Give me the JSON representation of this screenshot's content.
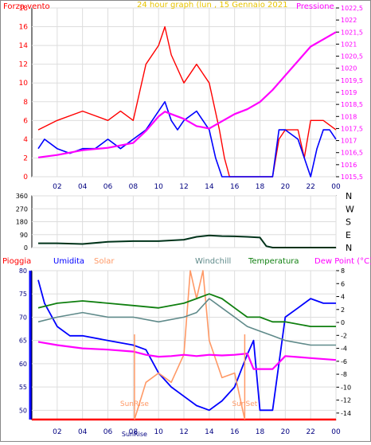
{
  "colors": {
    "wind": "#ff0000",
    "wind_avg": "#0000ff",
    "pressure": "#ff00ff",
    "direction": "#00331a",
    "rain": "#ff0000",
    "humidity": "#0000ff",
    "solar": "#ff9966",
    "windchill": "#5f8a8a",
    "temperature": "#0f7f0f",
    "dewpoint": "#ff00ff",
    "axis": "#000000",
    "grid": "#dddddd"
  },
  "chart_data": [
    {
      "type": "line",
      "title": "24 hour graph (lun , 15 Gennaio 2021",
      "ylabel": "Forza vento",
      "y2label": "Pressione",
      "xticks": [
        "02",
        "04",
        "06",
        "08",
        "10",
        "12",
        "14",
        "16",
        "18",
        "20",
        "22",
        "00"
      ],
      "ylim": [
        0,
        18
      ],
      "yticks": [
        "0",
        "2",
        "4",
        "6",
        "8",
        "10",
        "12",
        "14",
        "16",
        "18"
      ],
      "y2lim": [
        1015.5,
        1022.5
      ],
      "y2ticks": [
        "1015,5",
        "1016",
        "1016,5",
        "1017",
        "1017,5",
        "1018",
        "1018,5",
        "1019",
        "1019,5",
        "1020",
        "1020,5",
        "1021",
        "1021,5",
        "1022",
        "1022,5"
      ],
      "grid": true,
      "series": [
        {
          "name": "Forza vento",
          "axis": "left",
          "x": [
            0.5,
            2,
            4,
            6,
            7,
            8,
            9,
            10,
            10.5,
            11,
            12,
            13,
            14,
            14.8,
            15.2,
            15.6,
            17,
            19,
            19.5,
            20,
            21,
            21.5,
            22,
            23,
            24
          ],
          "values": [
            5,
            6,
            7,
            6,
            7,
            6,
            12,
            14,
            16,
            13,
            10,
            12,
            10,
            5,
            2,
            0,
            0,
            0,
            4,
            5,
            5,
            2,
            6,
            6,
            5
          ]
        },
        {
          "name": "",
          "axis": "left",
          "x": [
            0.5,
            1,
            2,
            3,
            4,
            5,
            6,
            7,
            8,
            9,
            10,
            10.5,
            11,
            11.5,
            12,
            13,
            14,
            14.5,
            15,
            15.5,
            17,
            19,
            19.5,
            20,
            21,
            21.5,
            22,
            22.5,
            23,
            23.5,
            24
          ],
          "values": [
            3,
            4,
            3,
            2.5,
            3,
            3,
            4,
            3,
            4,
            5,
            7,
            8,
            6,
            5,
            6,
            7,
            5,
            2,
            0,
            0,
            0,
            0,
            5,
            5,
            4,
            2,
            0,
            3,
            5,
            5,
            4
          ]
        },
        {
          "name": "Pressione",
          "axis": "right",
          "x": [
            0.5,
            2,
            4,
            6,
            8,
            9,
            10,
            10.5,
            11,
            12,
            13,
            14,
            15,
            16,
            17,
            18,
            19,
            20,
            21,
            22,
            23,
            24
          ],
          "values": [
            1016.3,
            1016.4,
            1016.6,
            1016.7,
            1016.9,
            1017.4,
            1018.0,
            1018.2,
            1018.1,
            1017.9,
            1017.6,
            1017.5,
            1017.8,
            1018.1,
            1018.3,
            1018.6,
            1019.1,
            1019.7,
            1020.3,
            1020.9,
            1021.2,
            1021.5
          ]
        }
      ]
    },
    {
      "type": "line",
      "xticks": [
        "02",
        "04",
        "06",
        "08",
        "10",
        "12",
        "14",
        "16",
        "18",
        "20",
        "22",
        "00"
      ],
      "ylim": [
        0,
        360
      ],
      "yticks": [
        "0",
        "90",
        "180",
        "270",
        "360"
      ],
      "direction_labels": [
        "N",
        "W",
        "S",
        "E",
        "N"
      ],
      "grid": true,
      "series": [
        {
          "name": "",
          "x": [
            0.5,
            2,
            4,
            6,
            8,
            10,
            12,
            13,
            14,
            15,
            16,
            17,
            18,
            18.5,
            19,
            20,
            22,
            24
          ],
          "values": [
            30,
            30,
            25,
            40,
            45,
            45,
            55,
            75,
            85,
            80,
            78,
            75,
            70,
            10,
            0,
            0,
            0,
            0
          ]
        }
      ]
    },
    {
      "type": "line",
      "legend": [
        "Pioggia",
        "Umidita",
        "Solar",
        "Windchill",
        "Temperatura",
        "Dew Point (°C)"
      ],
      "y_right_label": "Dew Point (°C)",
      "xticks": [
        "02",
        "04",
        "06",
        "08",
        "10",
        "12",
        "14",
        "16",
        "18",
        "20",
        "22",
        "00"
      ],
      "ylim": [
        48,
        80
      ],
      "yticks": [
        "50",
        "55",
        "60",
        "65",
        "70",
        "75",
        "80"
      ],
      "y2lim": [
        -15,
        8
      ],
      "y2ticks": [
        "-14",
        "-12",
        "-10",
        "-8",
        "-6",
        "-4",
        "-2",
        "0",
        "2",
        "4",
        "6",
        "8"
      ],
      "annotations": [
        {
          "text": "SunRise",
          "x": 8.1
        },
        {
          "text": "SunSet",
          "x": 16.8
        }
      ],
      "grid": true,
      "series": [
        {
          "name": "Pioggia",
          "axis": "left",
          "x": [
            0,
            17.6,
            17.6,
            24
          ],
          "values": [
            48,
            48,
            48,
            48
          ]
        },
        {
          "name": "Umidita",
          "axis": "left",
          "x": [
            0.5,
            1,
            2,
            3,
            4,
            6,
            8,
            9,
            10,
            11,
            12,
            13,
            14,
            15,
            16,
            17,
            17.5,
            18,
            19,
            20,
            21,
            22,
            23,
            24
          ],
          "values": [
            78,
            73,
            68,
            66,
            66,
            65,
            64,
            63,
            58,
            55,
            53,
            51,
            50,
            52,
            55,
            62,
            65,
            50,
            50,
            70,
            72,
            74,
            73,
            73
          ]
        },
        {
          "name": "Solar",
          "axis": "left",
          "x": [
            8.1,
            9,
            10,
            11,
            12,
            12.5,
            13,
            13.5,
            14,
            15,
            16,
            16.8
          ],
          "values": [
            48,
            56,
            58,
            56,
            62,
            80,
            74,
            80,
            65,
            57,
            58,
            48
          ]
        },
        {
          "name": "Windchill",
          "axis": "left",
          "x": [
            0.5,
            2,
            4,
            6,
            8,
            10,
            12,
            13,
            14,
            15,
            16,
            17,
            18,
            19,
            20,
            22,
            24
          ],
          "values": [
            69,
            70,
            71,
            70,
            70,
            69,
            70,
            71,
            74,
            72,
            70,
            68,
            67,
            66,
            65,
            64,
            64
          ]
        },
        {
          "name": "Temperatura",
          "axis": "left",
          "x": [
            0.5,
            2,
            4,
            6,
            8,
            10,
            12,
            13,
            14,
            15,
            16,
            17,
            18,
            19,
            20,
            22,
            24
          ],
          "values": [
            72,
            73,
            73.5,
            73,
            72.5,
            72,
            73,
            74,
            75,
            74,
            72,
            70,
            70,
            69,
            69,
            68,
            68
          ]
        },
        {
          "name": "Dew Point (°C)",
          "axis": "right",
          "x": [
            0.5,
            2,
            4,
            6,
            8,
            9,
            10,
            11,
            12,
            13,
            14,
            15,
            16,
            17,
            17.5,
            18,
            19,
            20,
            22,
            24
          ],
          "values": [
            -3.0,
            -3.5,
            -4.0,
            -4.2,
            -4.5,
            -5.0,
            -5.3,
            -5.2,
            -5.0,
            -5.2,
            -5.0,
            -5.1,
            -5.0,
            -4.8,
            -7.2,
            -7.2,
            -7.2,
            -5.2,
            -5.5,
            -5.8
          ]
        }
      ]
    }
  ]
}
